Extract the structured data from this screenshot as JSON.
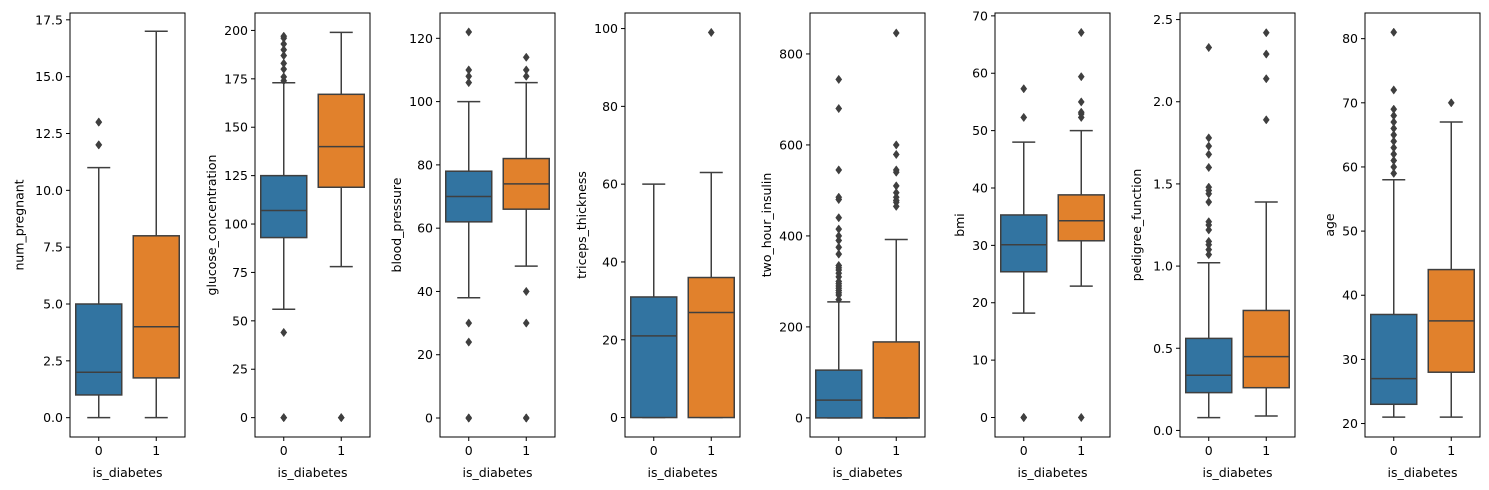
{
  "chart_data": [
    {
      "type": "box",
      "xlabel": "is_diabetes",
      "ylabel": "num_pregnant",
      "categories": [
        "0",
        "1"
      ],
      "ylim": [
        -0.85,
        17.8
      ],
      "yticks": [
        0.0,
        2.5,
        5.0,
        7.5,
        10.0,
        12.5,
        15.0,
        17.5
      ],
      "ytick_labels": [
        "0.0",
        "2.5",
        "5.0",
        "7.5",
        "10.0",
        "12.5",
        "15.0",
        "17.5"
      ],
      "boxes": [
        {
          "category": "0",
          "whisker_low": 0,
          "q1": 1,
          "median": 2,
          "q3": 5,
          "whisker_high": 11,
          "outliers": [
            12,
            12,
            13,
            13
          ]
        },
        {
          "category": "1",
          "whisker_low": 0,
          "q1": 1.75,
          "median": 4,
          "q3": 8,
          "whisker_high": 17,
          "outliers": []
        }
      ]
    },
    {
      "type": "box",
      "xlabel": "is_diabetes",
      "ylabel": "glucose_concentration",
      "categories": [
        "0",
        "1"
      ],
      "ylim": [
        -10,
        209
      ],
      "yticks": [
        0,
        25,
        50,
        75,
        100,
        125,
        150,
        175,
        200
      ],
      "ytick_labels": [
        "0",
        "25",
        "50",
        "75",
        "100",
        "125",
        "150",
        "175",
        "200"
      ],
      "boxes": [
        {
          "category": "0",
          "whisker_low": 56,
          "q1": 93,
          "median": 107,
          "q3": 125,
          "whisker_high": 173,
          "outliers": [
            0,
            0,
            44,
            174,
            176,
            180,
            183,
            187,
            190,
            193,
            196,
            197
          ]
        },
        {
          "category": "1",
          "whisker_low": 78,
          "q1": 119,
          "median": 140,
          "q3": 167,
          "whisker_high": 199,
          "outliers": [
            0,
            0
          ]
        }
      ]
    },
    {
      "type": "box",
      "xlabel": "is_diabetes",
      "ylabel": "blood_pressure",
      "categories": [
        "0",
        "1"
      ],
      "ylim": [
        -6,
        128
      ],
      "yticks": [
        0,
        20,
        40,
        60,
        80,
        100,
        120
      ],
      "ytick_labels": [
        "0",
        "20",
        "40",
        "60",
        "80",
        "100",
        "120"
      ],
      "boxes": [
        {
          "category": "0",
          "whisker_low": 38,
          "q1": 62,
          "median": 70,
          "q3": 78,
          "whisker_high": 100,
          "outliers": [
            0,
            0,
            0,
            24,
            30,
            106,
            108,
            110,
            122
          ]
        },
        {
          "category": "1",
          "whisker_low": 48,
          "q1": 66,
          "median": 74,
          "q3": 82,
          "whisker_high": 106,
          "outliers": [
            0,
            0,
            0,
            30,
            40,
            108,
            110,
            114
          ]
        }
      ]
    },
    {
      "type": "box",
      "xlabel": "is_diabetes",
      "ylabel": "triceps_thickness",
      "categories": [
        "0",
        "1"
      ],
      "ylim": [
        -5,
        104
      ],
      "yticks": [
        0,
        20,
        40,
        60,
        80,
        100
      ],
      "ytick_labels": [
        "0",
        "20",
        "40",
        "60",
        "80",
        "100"
      ],
      "boxes": [
        {
          "category": "0",
          "whisker_low": 0,
          "q1": 0,
          "median": 21,
          "q3": 31,
          "whisker_high": 60,
          "outliers": []
        },
        {
          "category": "1",
          "whisker_low": 0,
          "q1": 0,
          "median": 27,
          "q3": 36,
          "whisker_high": 63,
          "outliers": [
            99
          ]
        }
      ]
    },
    {
      "type": "box",
      "xlabel": "is_diabetes",
      "ylabel": "two_hour_insulin",
      "categories": [
        "0",
        "1"
      ],
      "ylim": [
        -42,
        890
      ],
      "yticks": [
        0,
        200,
        400,
        600,
        800
      ],
      "ytick_labels": [
        "0",
        "200",
        "400",
        "600",
        "800"
      ],
      "boxes": [
        {
          "category": "0",
          "whisker_low": 0,
          "q1": 0,
          "median": 39,
          "q3": 105,
          "whisker_high": 255,
          "outliers": [
            260,
            270,
            275,
            280,
            285,
            290,
            295,
            300,
            310,
            318,
            325,
            330,
            335,
            360,
            375,
            390,
            400,
            415,
            440,
            480,
            485,
            545,
            680,
            744
          ]
        },
        {
          "category": "1",
          "whisker_low": 0,
          "q1": 0,
          "median": 0,
          "q3": 167,
          "whisker_high": 392,
          "outliers": [
            465,
            474,
            478,
            485,
            495,
            510,
            540,
            545,
            579,
            600,
            846
          ]
        }
      ]
    },
    {
      "type": "box",
      "xlabel": "is_diabetes",
      "ylabel": "bmi",
      "categories": [
        "0",
        "1"
      ],
      "ylim": [
        -3.4,
        70.5
      ],
      "yticks": [
        0,
        10,
        20,
        30,
        40,
        50,
        60,
        70
      ],
      "ytick_labels": [
        "0",
        "10",
        "20",
        "30",
        "40",
        "50",
        "60",
        "70"
      ],
      "boxes": [
        {
          "category": "0",
          "whisker_low": 18.2,
          "q1": 25.4,
          "median": 30.1,
          "q3": 35.3,
          "whisker_high": 48.0,
          "outliers": [
            0,
            0,
            0,
            52.3,
            57.3
          ]
        },
        {
          "category": "1",
          "whisker_low": 22.9,
          "q1": 30.8,
          "median": 34.3,
          "q3": 38.8,
          "whisker_high": 50.0,
          "outliers": [
            0,
            52.3,
            52.9,
            53.2,
            55.0,
            59.4,
            67.1
          ]
        }
      ]
    },
    {
      "type": "box",
      "xlabel": "is_diabetes",
      "ylabel": "pedigree_function",
      "categories": [
        "0",
        "1"
      ],
      "ylim": [
        -0.04,
        2.54
      ],
      "yticks": [
        0.0,
        0.5,
        1.0,
        1.5,
        2.0,
        2.5
      ],
      "ytick_labels": [
        "0.0",
        "0.5",
        "1.0",
        "1.5",
        "2.0",
        "2.5"
      ],
      "boxes": [
        {
          "category": "0",
          "whisker_low": 0.078,
          "q1": 0.23,
          "median": 0.336,
          "q3": 0.56,
          "whisker_high": 1.02,
          "outliers": [
            1.07,
            1.1,
            1.13,
            1.15,
            1.22,
            1.25,
            1.27,
            1.39,
            1.44,
            1.46,
            1.48,
            1.6,
            1.68,
            1.73,
            1.78,
            2.33
          ]
        },
        {
          "category": "1",
          "whisker_low": 0.088,
          "q1": 0.26,
          "median": 0.449,
          "q3": 0.73,
          "whisker_high": 1.39,
          "outliers": [
            1.89,
            2.14,
            2.29,
            2.42
          ]
        }
      ]
    },
    {
      "type": "box",
      "xlabel": "is_diabetes",
      "ylabel": "age",
      "categories": [
        "0",
        "1"
      ],
      "ylim": [
        17.9,
        84.0
      ],
      "yticks": [
        20,
        30,
        40,
        50,
        60,
        70,
        80
      ],
      "ytick_labels": [
        "20",
        "30",
        "40",
        "50",
        "60",
        "70",
        "80"
      ],
      "boxes": [
        {
          "category": "0",
          "whisker_low": 21,
          "q1": 23,
          "median": 27,
          "q3": 37,
          "whisker_high": 58,
          "outliers": [
            59,
            60,
            61,
            62,
            63,
            64,
            65,
            66,
            67,
            68,
            69,
            72,
            81
          ]
        },
        {
          "category": "1",
          "whisker_low": 21,
          "q1": 28,
          "median": 36,
          "q3": 44,
          "whisker_high": 67,
          "outliers": [
            70
          ]
        }
      ]
    }
  ],
  "colors": {
    "category_0": "#3274a1",
    "category_1": "#e1812c",
    "lines": "#3f3f3f",
    "axes": "#000000"
  }
}
